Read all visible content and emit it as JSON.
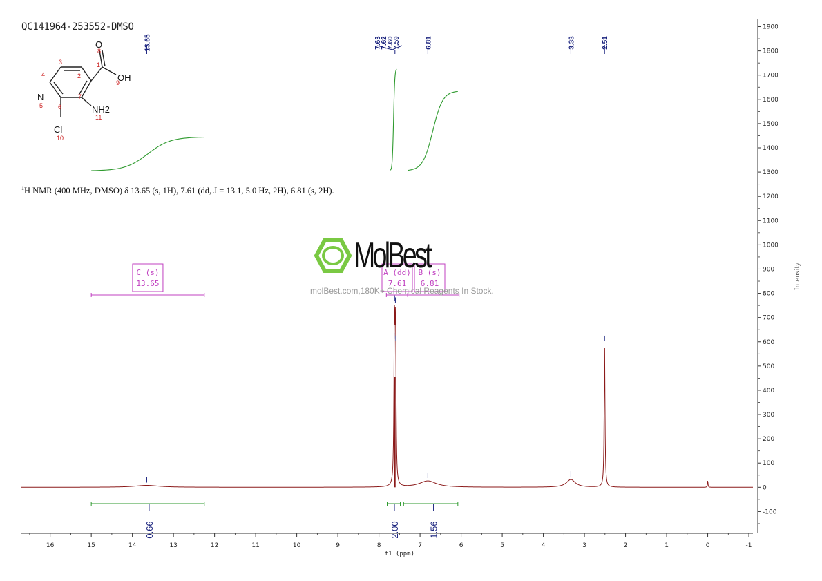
{
  "header": {
    "sample_id": "QC141964-253552-DMSO"
  },
  "nmr_description": {
    "sup": "1",
    "text": "H NMR (400 MHz, DMSO) δ 13.65 (s, 1H), 7.61 (dd, J = 13.1, 5.0 Hz, 2H), 6.81 (s, 2H)."
  },
  "molecule": {
    "atoms": [
      "O",
      "OH",
      "N",
      "NH2",
      "Cl"
    ],
    "atom_numbers": [
      "1",
      "2",
      "3",
      "4",
      "5",
      "6",
      "7",
      "8",
      "9",
      "10",
      "11"
    ]
  },
  "watermark": {
    "brand": "MolBest",
    "tagline": "molBest.com,180K+ Chemical Reagents In Stock."
  },
  "chart_data": {
    "type": "line",
    "xlabel": "f1 (ppm)",
    "ylabel": "Intensity",
    "xlim": [
      16.7,
      -1.1
    ],
    "ylim": [
      -190,
      1930
    ],
    "x_ticks": [
      "16",
      "15",
      "14",
      "13",
      "12",
      "11",
      "10",
      "9",
      "8",
      "7",
      "6",
      "5",
      "4",
      "3",
      "2",
      "1",
      "0",
      "-1"
    ],
    "y_ticks": [
      "1900",
      "1800",
      "1700",
      "1600",
      "1500",
      "1400",
      "1300",
      "1200",
      "1100",
      "1000",
      "900",
      "800",
      "700",
      "600",
      "500",
      "400",
      "300",
      "200",
      "100",
      "0",
      "-100"
    ],
    "peak_labels": [
      "13.65",
      "7.63",
      "7.62",
      "7.60",
      "7.59",
      "6.81",
      "3.33",
      "2.51"
    ],
    "peaks": [
      {
        "ppm": 13.65,
        "height": 8,
        "width": 0.35
      },
      {
        "ppm": 7.63,
        "height": 250,
        "width": 0.012
      },
      {
        "ppm": 7.62,
        "height": 455,
        "width": 0.012
      },
      {
        "ppm": 7.6,
        "height": 450,
        "width": 0.012
      },
      {
        "ppm": 7.59,
        "height": 240,
        "width": 0.012
      },
      {
        "ppm": 6.81,
        "height": 26,
        "width": 0.25
      },
      {
        "ppm": 3.33,
        "height": 32,
        "width": 0.13
      },
      {
        "ppm": 2.51,
        "height": 590,
        "width": 0.012
      },
      {
        "ppm": 0.0,
        "height": 28,
        "width": 0.008
      }
    ],
    "integrals": [
      {
        "from": 15.0,
        "to": 12.25,
        "value": "0.66"
      },
      {
        "from": 7.8,
        "to": 7.48,
        "value": "2.00"
      },
      {
        "from": 7.4,
        "to": 6.08,
        "value": "1.56"
      }
    ],
    "integral_curves": [
      {
        "from": 15.0,
        "to": 12.25,
        "y_start": 1305,
        "y_end": 1445
      },
      {
        "from": 7.72,
        "to": 7.57,
        "y_start": 1305,
        "y_end": 1728
      },
      {
        "from": 7.3,
        "to": 6.08,
        "y_start": 1305,
        "y_end": 1635
      }
    ],
    "multiplets": [
      {
        "letter": "C",
        "mult": "s",
        "shift": "13.65",
        "from": 15.0,
        "to": 12.25
      },
      {
        "letter": "A",
        "mult": "dd",
        "shift": "7.61",
        "from": 7.82,
        "to": 7.3
      },
      {
        "letter": "B",
        "mult": "s",
        "shift": "6.81",
        "from": 7.3,
        "to": 6.05
      }
    ],
    "spectrum_color": "#8b1a1a",
    "integral_color": "#2e9a2e",
    "label_color": "#1a237e",
    "multiplet_color": "#c040c0"
  }
}
